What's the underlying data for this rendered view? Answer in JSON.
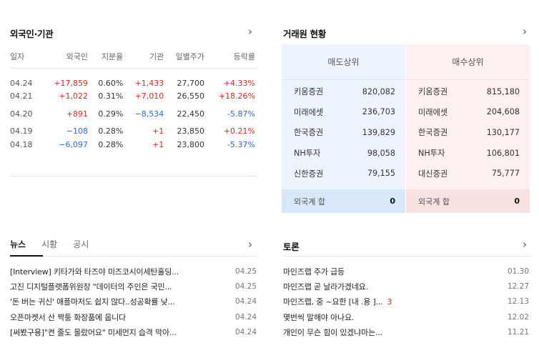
{
  "foreign": {
    "title": "외국인·기관",
    "headers": [
      "일자",
      "외국인",
      "지분율",
      "기관",
      "일별주가",
      "등락률"
    ],
    "rows": [
      {
        "date": "04.24",
        "foreign": "+17,859",
        "share": "0.60%",
        "inst": "+1,433",
        "price": "27,700",
        "change": "+4.33%",
        "f_dir": "up",
        "i_dir": "up",
        "c_dir": "up"
      },
      {
        "date": "04.21",
        "foreign": "+1,022",
        "share": "0.31%",
        "inst": "+7,010",
        "price": "26,550",
        "change": "+18.26%",
        "f_dir": "up",
        "i_dir": "up",
        "c_dir": "up"
      },
      {
        "date": "04.20",
        "foreign": "+891",
        "share": "0.29%",
        "inst": "−8,534",
        "price": "22,450",
        "change": "-5.87%",
        "f_dir": "up",
        "i_dir": "down",
        "c_dir": "down"
      },
      {
        "date": "04.19",
        "foreign": "−108",
        "share": "0.28%",
        "inst": "+1",
        "price": "23,850",
        "change": "+0.21%",
        "f_dir": "down",
        "i_dir": "up",
        "c_dir": "up"
      },
      {
        "date": "04.18",
        "foreign": "−6,097",
        "share": "0.28%",
        "inst": "+1",
        "price": "23,800",
        "change": "-5.37%",
        "f_dir": "down",
        "i_dir": "up",
        "c_dir": "down"
      }
    ]
  },
  "broker": {
    "title": "거래원 현황",
    "sell": {
      "header": "매도상위",
      "rows": [
        {
          "name": "키움증권",
          "value": "820,082"
        },
        {
          "name": "미래에셋",
          "value": "236,703"
        },
        {
          "name": "한국증권",
          "value": "139,829"
        },
        {
          "name": "NH투자",
          "value": "98,058"
        },
        {
          "name": "신한증권",
          "value": "79,155"
        }
      ],
      "foot_label": "외국계 합",
      "foot_value": "0"
    },
    "buy": {
      "header": "매수상위",
      "rows": [
        {
          "name": "키움증권",
          "value": "815,180"
        },
        {
          "name": "미래에셋",
          "value": "204,608"
        },
        {
          "name": "한국증권",
          "value": "130,177"
        },
        {
          "name": "NH투자",
          "value": "106,801"
        },
        {
          "name": "대신증권",
          "value": "75,777"
        }
      ],
      "foot_label": "외국계 합",
      "foot_value": "0"
    }
  },
  "news": {
    "tabs": [
      "뉴스",
      "시황",
      "공시"
    ],
    "items": [
      {
        "title": "[Interview] 키타가와 타즈야 미즈코시이세탄홀딩...",
        "date": "04.25"
      },
      {
        "title": "고진 디지털플랫폼위원장 \"데이터의 주인은 국민...",
        "date": "04.25"
      },
      {
        "title": "'돈 버는 귀신' 애플마저도 쉽지 않다..성공확률 낮...",
        "date": "04.24"
      },
      {
        "title": "오픈마켓서 산 짝퉁 화장품에 웁니다",
        "date": "04.24"
      },
      {
        "title": "[써봤구용]\"켠 줄도 몰랐어요\" 미세먼지 습격 막아...",
        "date": "04.24"
      }
    ]
  },
  "forum": {
    "title": "토론",
    "items": [
      {
        "title": "마인즈랩 주가 급등",
        "date": "01.30",
        "comments": ""
      },
      {
        "title": "마인즈랩 곧 날라가겠네요.",
        "date": "12.27",
        "comments": ""
      },
      {
        "title": "마인즈랩, 중 ~요한 [내 .용 ]...",
        "date": "12.13",
        "comments": "3"
      },
      {
        "title": "몇번씩 말해야 아나요.",
        "date": "12.02",
        "comments": ""
      },
      {
        "title": "개인이 무슨 힘이 있겠냐마는...",
        "date": "11.21",
        "comments": ""
      }
    ]
  },
  "icons": {
    "more": "chevron-right-icon"
  },
  "colors": {
    "up": "#e0241f",
    "down": "#2f66d0",
    "sell_bg": "#eef4fd",
    "buy_bg": "#fdf0f0"
  }
}
